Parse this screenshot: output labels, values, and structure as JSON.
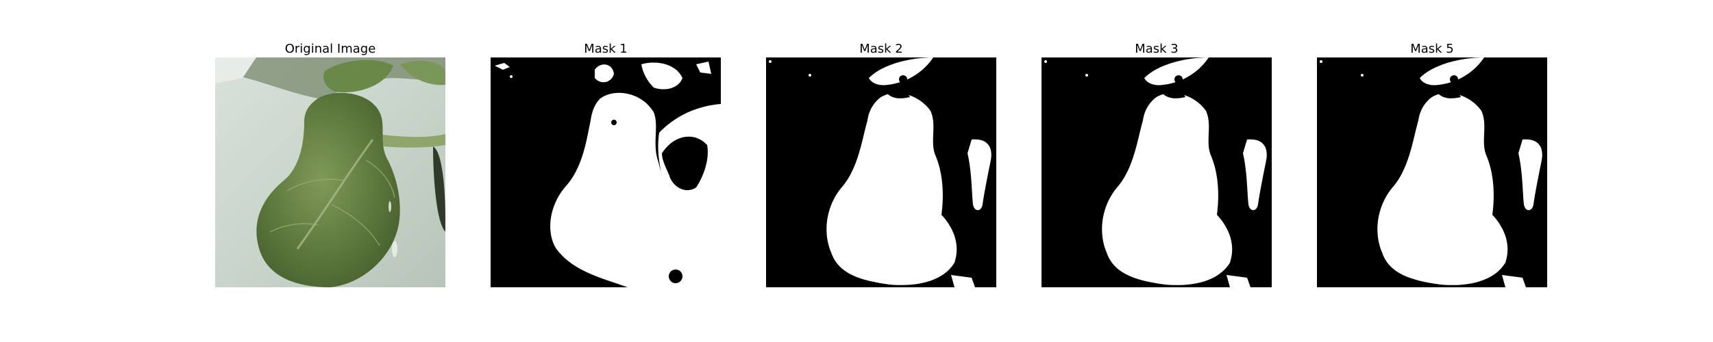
{
  "figure": {
    "panels": [
      {
        "title": "Original Image",
        "kind": "photo"
      },
      {
        "title": "Mask 1",
        "kind": "mask-noisy"
      },
      {
        "title": "Mask 2",
        "kind": "mask-clean"
      },
      {
        "title": "Mask 3",
        "kind": "mask-clean"
      },
      {
        "title": "Mask 5",
        "kind": "mask-clean"
      }
    ]
  },
  "colors": {
    "background": "#ffffff",
    "mask_background": "#000000",
    "mask_foreground": "#ffffff",
    "leaf_dark": "#4f6b34",
    "leaf_mid": "#6e8a4a",
    "leaf_light": "#9fb283",
    "surface": "#cfd9d0"
  }
}
